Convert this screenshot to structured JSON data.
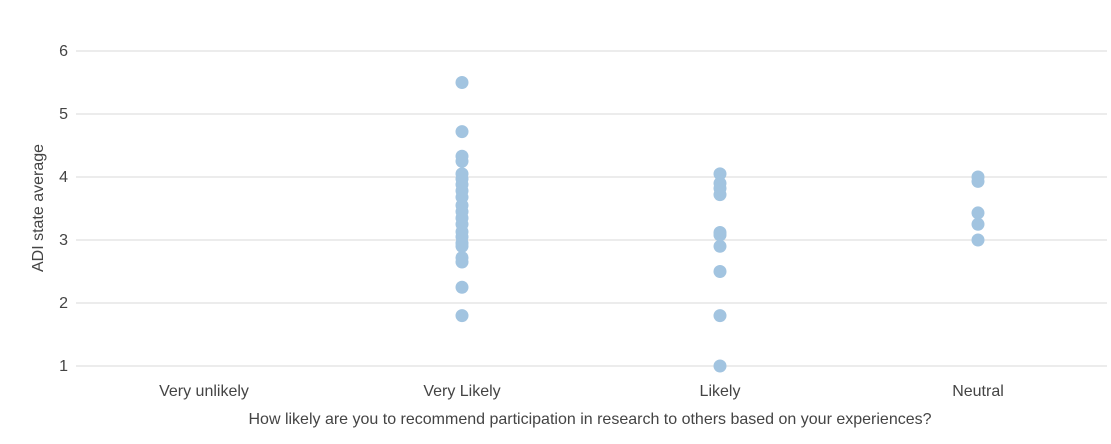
{
  "chart_data": {
    "type": "scatter",
    "xlabel": "How likely are you to recommend participation in research to others based on your experiences?",
    "ylabel": "ADI state average",
    "categories": [
      "Very unlikely",
      "Very Likely",
      "Likely",
      "Neutral"
    ],
    "ylim": [
      1,
      6
    ],
    "yticks": [
      1,
      2,
      3,
      4,
      5,
      6
    ],
    "grid": true,
    "colors": {
      "point": "#a2c4e0",
      "grid": "#d9d9d9",
      "text": "#444444"
    },
    "series": [
      {
        "points": [
          {
            "category": "Very Likely",
            "y": 5.5
          },
          {
            "category": "Very Likely",
            "y": 4.72
          },
          {
            "category": "Very Likely",
            "y": 4.33
          },
          {
            "category": "Very Likely",
            "y": 4.25
          },
          {
            "category": "Very Likely",
            "y": 4.05
          },
          {
            "category": "Very Likely",
            "y": 3.97
          },
          {
            "category": "Very Likely",
            "y": 3.88
          },
          {
            "category": "Very Likely",
            "y": 3.78
          },
          {
            "category": "Very Likely",
            "y": 3.68
          },
          {
            "category": "Very Likely",
            "y": 3.55
          },
          {
            "category": "Very Likely",
            "y": 3.45
          },
          {
            "category": "Very Likely",
            "y": 3.35
          },
          {
            "category": "Very Likely",
            "y": 3.25
          },
          {
            "category": "Very Likely",
            "y": 3.13
          },
          {
            "category": "Very Likely",
            "y": 3.05
          },
          {
            "category": "Very Likely",
            "y": 2.95
          },
          {
            "category": "Very Likely",
            "y": 2.9
          },
          {
            "category": "Very Likely",
            "y": 2.72
          },
          {
            "category": "Very Likely",
            "y": 2.65
          },
          {
            "category": "Very Likely",
            "y": 2.25
          },
          {
            "category": "Very Likely",
            "y": 1.8
          },
          {
            "category": "Likely",
            "y": 4.05
          },
          {
            "category": "Likely",
            "y": 3.9
          },
          {
            "category": "Likely",
            "y": 3.82
          },
          {
            "category": "Likely",
            "y": 3.72
          },
          {
            "category": "Likely",
            "y": 3.12
          },
          {
            "category": "Likely",
            "y": 3.08
          },
          {
            "category": "Likely",
            "y": 2.9
          },
          {
            "category": "Likely",
            "y": 2.5
          },
          {
            "category": "Likely",
            "y": 1.8
          },
          {
            "category": "Likely",
            "y": 1.0
          },
          {
            "category": "Neutral",
            "y": 4.0
          },
          {
            "category": "Neutral",
            "y": 3.93
          },
          {
            "category": "Neutral",
            "y": 3.43
          },
          {
            "category": "Neutral",
            "y": 3.25
          },
          {
            "category": "Neutral",
            "y": 3.0
          }
        ]
      }
    ]
  }
}
